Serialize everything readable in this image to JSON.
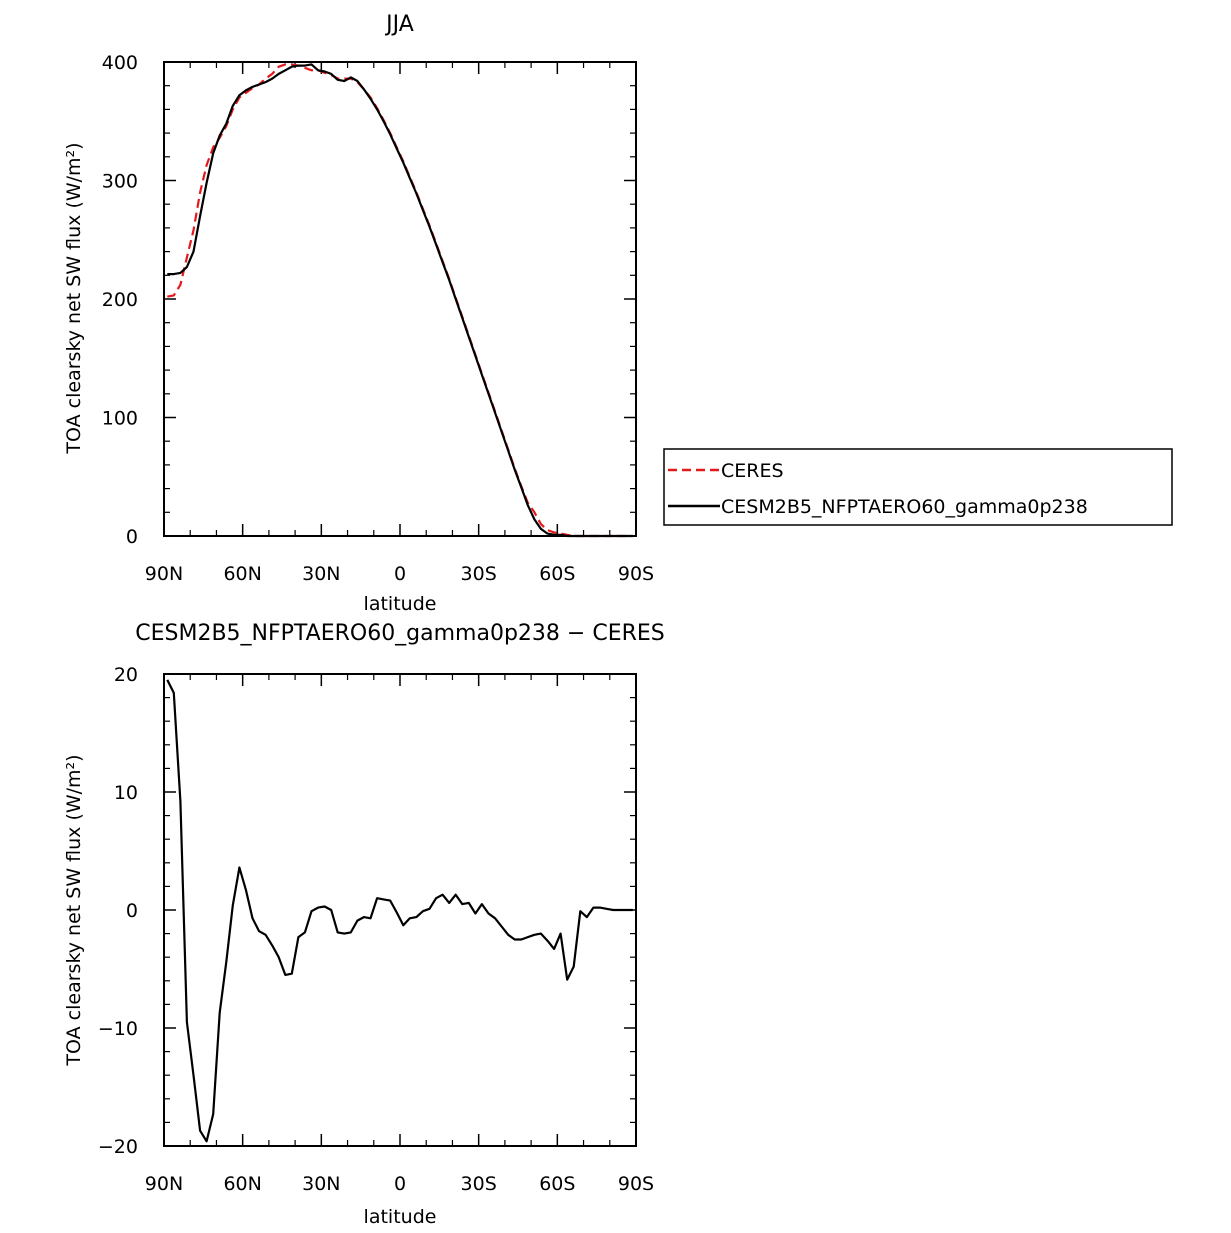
{
  "chart_data": [
    {
      "type": "line",
      "title": "JJA",
      "xlabel": "latitude",
      "ylabel": "TOA clearsky net SW flux (W/m²)",
      "xlim": [
        90,
        -90
      ],
      "ylim": [
        0,
        400
      ],
      "xticks": [
        "90N",
        "60N",
        "30N",
        "0",
        "30S",
        "60S",
        "90S"
      ],
      "yticks": [
        "0",
        "100",
        "200",
        "300",
        "400"
      ],
      "legend": {
        "position": "right",
        "entries": [
          "CERES",
          "CESM2B5_NFPTAERO60_gamma0p238"
        ]
      },
      "series": [
        {
          "name": "CERES",
          "color": "#e31a1c",
          "dashed": true,
          "x": [
            88.75,
            86.25,
            83.75,
            81.25,
            78.75,
            76.25,
            73.75,
            71.25,
            68.75,
            66.25,
            63.75,
            61.25,
            58.75,
            56.25,
            53.75,
            51.25,
            48.75,
            46.25,
            43.75,
            41.25,
            38.75,
            36.25,
            33.75,
            31.25,
            28.75,
            26.25,
            23.75,
            21.25,
            18.75,
            16.25,
            13.75,
            11.25,
            8.75,
            6.25,
            3.75,
            1.25,
            -1.25,
            -3.75,
            -6.25,
            -8.75,
            -11.25,
            -13.75,
            -16.25,
            -18.75,
            -21.25,
            -23.75,
            -26.25,
            -28.75,
            -31.25,
            -33.75,
            -36.25,
            -38.75,
            -41.25,
            -43.75,
            -46.25,
            -48.75,
            -51.25,
            -53.75,
            -56.25,
            -58.75,
            -61.25,
            -63.75,
            -66.25,
            -68.75,
            -71.25,
            -73.75,
            -76.25,
            -78.75,
            -81.25,
            -83.75,
            -86.25,
            -88.75
          ],
          "y": [
            202,
            203,
            212,
            235,
            258,
            290,
            313,
            328,
            336,
            346,
            360,
            370,
            374,
            378,
            381,
            386,
            390,
            396,
            398,
            398,
            397,
            395,
            393,
            393,
            391,
            389,
            386,
            386,
            386,
            383,
            377,
            370,
            361,
            351,
            340,
            328,
            316,
            303,
            290,
            276,
            262,
            247,
            232,
            217,
            201,
            185,
            169,
            153,
            137,
            121,
            105,
            89,
            73,
            57,
            42,
            28,
            20,
            10,
            5,
            3,
            2,
            1,
            0,
            0,
            0,
            0,
            0,
            0,
            0,
            0,
            0,
            0
          ]
        },
        {
          "name": "CESM2B5_NFPTAERO60_gamma0p238",
          "color": "#000000",
          "dashed": false,
          "x": [
            88.75,
            86.25,
            83.75,
            81.25,
            78.75,
            76.25,
            73.75,
            71.25,
            68.75,
            66.25,
            63.75,
            61.25,
            58.75,
            56.25,
            53.75,
            51.25,
            48.75,
            46.25,
            43.75,
            41.25,
            38.75,
            36.25,
            33.75,
            31.25,
            28.75,
            26.25,
            23.75,
            21.25,
            18.75,
            16.25,
            13.75,
            11.25,
            8.75,
            6.25,
            3.75,
            1.25,
            -1.25,
            -3.75,
            -6.25,
            -8.75,
            -11.25,
            -13.75,
            -16.25,
            -18.75,
            -21.25,
            -23.75,
            -26.25,
            -28.75,
            -31.25,
            -33.75,
            -36.25,
            -38.75,
            -41.25,
            -43.75,
            -46.25,
            -48.75,
            -51.25,
            -53.75,
            -56.25,
            -58.75,
            -61.25,
            -63.75,
            -66.25,
            -68.75,
            -71.25,
            -73.75,
            -76.25,
            -78.75,
            -81.25,
            -83.75,
            -86.25,
            -88.75
          ],
          "y": [
            221,
            221,
            222,
            227,
            240,
            270,
            298,
            323,
            338,
            348,
            363,
            372,
            376,
            379,
            381,
            383,
            386,
            390,
            393,
            396,
            397,
            397,
            398,
            393,
            392,
            390,
            385,
            384,
            387,
            384,
            377,
            369,
            360,
            350,
            339,
            327,
            315,
            302,
            289,
            275,
            261,
            246,
            231,
            216,
            200,
            184,
            168,
            152,
            136,
            120,
            104,
            88,
            72,
            56,
            41,
            26,
            14,
            6,
            2,
            1,
            1,
            0,
            0,
            0,
            0,
            0,
            0,
            0,
            0,
            0,
            0,
            0
          ]
        }
      ]
    },
    {
      "type": "line",
      "title": "CESM2B5_NFPTAERO60_gamma0p238 − CERES",
      "xlabel": "latitude",
      "ylabel": "TOA clearsky net SW flux (W/m²)",
      "xlim": [
        90,
        -90
      ],
      "ylim": [
        -20,
        20
      ],
      "xticks": [
        "90N",
        "60N",
        "30N",
        "0",
        "30S",
        "60S",
        "90S"
      ],
      "yticks": [
        "−20",
        "−10",
        "0",
        "10",
        "20"
      ],
      "series": [
        {
          "color": "#000000",
          "x": [
            88.75,
            86.25,
            83.75,
            81.25,
            78.75,
            76.25,
            73.75,
            71.25,
            68.75,
            66.25,
            63.75,
            61.25,
            58.75,
            56.25,
            53.75,
            51.25,
            48.75,
            46.25,
            43.75,
            41.25,
            38.75,
            36.25,
            33.75,
            31.25,
            28.75,
            26.25,
            23.75,
            21.25,
            18.75,
            16.25,
            13.75,
            11.25,
            8.75,
            6.25,
            3.75,
            1.25,
            -1.25,
            -3.75,
            -6.25,
            -8.75,
            -11.25,
            -13.75,
            -16.25,
            -18.75,
            -21.25,
            -23.75,
            -26.25,
            -28.75,
            -31.25,
            -33.75,
            -36.25,
            -38.75,
            -41.25,
            -43.75,
            -46.25,
            -48.75,
            -51.25,
            -53.75,
            -56.25,
            -58.75,
            -61.25,
            -63.75,
            -66.25,
            -68.75,
            -71.25,
            -73.75,
            -76.25,
            -78.75,
            -81.25,
            -83.75,
            -86.25,
            -88.75
          ],
          "y": [
            19.5,
            18.4,
            9.2,
            -9.5,
            -14.0,
            -18.7,
            -19.6,
            -17.3,
            -8.7,
            -4.4,
            0.4,
            3.6,
            1.7,
            -0.7,
            -1.8,
            -2.1,
            -3.0,
            -4.0,
            -5.5,
            -5.4,
            -2.3,
            -1.9,
            -0.1,
            0.2,
            0.3,
            0.0,
            -1.9,
            -2.0,
            -1.9,
            -0.9,
            -0.6,
            -0.7,
            1.0,
            0.9,
            0.8,
            -0.2,
            -1.3,
            -0.7,
            -0.6,
            -0.1,
            0.1,
            1.0,
            1.3,
            0.6,
            1.3,
            0.5,
            0.6,
            -0.3,
            0.5,
            -0.3,
            -0.7,
            -1.4,
            -2.1,
            -2.5,
            -2.5,
            -2.3,
            -2.1,
            -2.0,
            -2.6,
            -3.3,
            -2.0,
            -5.9,
            -4.8,
            -0.1,
            -0.6,
            0.2,
            0.2,
            0.1,
            0.0,
            0.0,
            0.0,
            0.0
          ]
        }
      ]
    }
  ]
}
